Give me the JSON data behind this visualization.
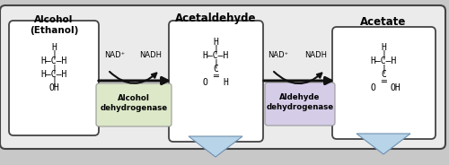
{
  "fig_width": 5.0,
  "fig_height": 1.84,
  "dpi": 100,
  "bg_color": "#c8c8c8",
  "outer_box_color": "#ebebeb",
  "outer_box_edge": "#444444",
  "molecule_box_color": "#ffffff",
  "molecule_box_edge": "#444444",
  "enzyme_box1_color": "#dce8c8",
  "enzyme_box2_color": "#d5cce8",
  "enzyme_box_edge": "#999999",
  "title_alcohol": "Alcohol\n(Ethanol)",
  "title_acetaldehyde": "Acetaldehyde",
  "title_acetate": "Acetate",
  "enzyme1": "Alcohol\ndehydrogenase",
  "enzyme2": "Aldehyde\ndehydrogenase",
  "nad_label": "NAD⁺",
  "nadh_label": "NADH",
  "arrow_color": "#111111",
  "blue_arrow_color": "#b8d4e8",
  "blue_arrow_edge": "#7090b0"
}
